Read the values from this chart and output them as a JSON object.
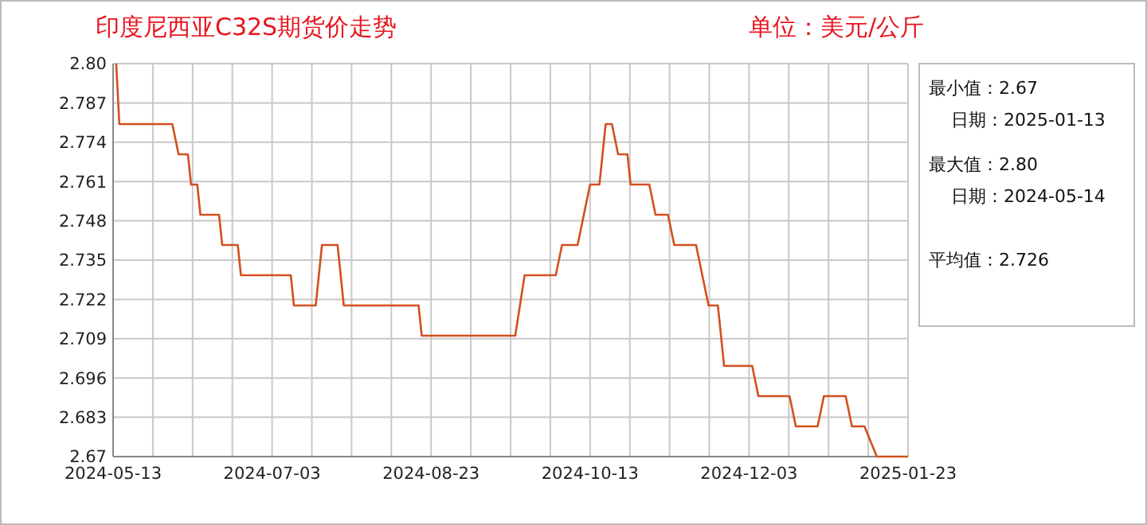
{
  "chart_data": {
    "type": "line",
    "title": "印度尼西亚C32S期货价走势",
    "subtitle": "单位：美元/公斤",
    "series": [
      {
        "color": "#d2501e",
        "x": [
          "2024-05-14",
          "2024-05-15",
          "2024-06-01",
          "2024-06-03",
          "2024-06-06",
          "2024-06-07",
          "2024-06-09",
          "2024-06-10",
          "2024-06-16",
          "2024-06-17",
          "2024-06-22",
          "2024-06-23",
          "2024-07-09",
          "2024-07-10",
          "2024-07-17",
          "2024-07-19",
          "2024-07-24",
          "2024-07-26",
          "2024-08-19",
          "2024-08-20",
          "2024-09-19",
          "2024-09-22",
          "2024-10-02",
          "2024-10-04",
          "2024-10-09",
          "2024-10-13",
          "2024-10-16",
          "2024-10-18",
          "2024-10-20",
          "2024-10-22",
          "2024-10-25",
          "2024-10-26",
          "2024-11-01",
          "2024-11-03",
          "2024-11-07",
          "2024-11-09",
          "2024-11-16",
          "2024-11-18",
          "2024-11-20",
          "2024-11-23",
          "2024-11-25",
          "2024-12-04",
          "2024-12-06",
          "2024-12-16",
          "2024-12-18",
          "2024-12-25",
          "2024-12-27",
          "2025-01-03",
          "2025-01-05",
          "2025-01-09",
          "2025-01-13",
          "2025-01-23"
        ],
        "values": [
          2.8,
          2.78,
          2.78,
          2.77,
          2.77,
          2.76,
          2.76,
          2.75,
          2.75,
          2.74,
          2.74,
          2.73,
          2.73,
          2.72,
          2.72,
          2.74,
          2.74,
          2.72,
          2.72,
          2.71,
          2.71,
          2.73,
          2.73,
          2.74,
          2.74,
          2.76,
          2.76,
          2.78,
          2.78,
          2.77,
          2.77,
          2.76,
          2.76,
          2.75,
          2.75,
          2.74,
          2.74,
          2.73,
          2.72,
          2.72,
          2.7,
          2.7,
          2.69,
          2.69,
          2.68,
          2.68,
          2.69,
          2.69,
          2.68,
          2.68,
          2.67,
          2.67
        ]
      }
    ],
    "xlim": [
      "2024-05-13",
      "2025-01-23"
    ],
    "xticks": [
      "2024-05-13",
      {
        "value": "2024-05-25T18:00",
        "label": null
      },
      {
        "value": "2024-06-07T12:00",
        "label": null
      },
      {
        "value": "2024-06-20T06:00",
        "label": null
      },
      "2024-07-03",
      {
        "value": "2024-07-15T18:00",
        "label": null
      },
      {
        "value": "2024-07-28T12:00",
        "label": null
      },
      {
        "value": "2024-08-10T06:00",
        "label": null
      },
      "2024-08-23",
      {
        "value": "2024-09-04T18:00",
        "label": null
      },
      {
        "value": "2024-09-17T12:00",
        "label": null
      },
      {
        "value": "2024-09-30T06:00",
        "label": null
      },
      "2024-10-13",
      {
        "value": "2024-10-25T18:00",
        "label": null
      },
      {
        "value": "2024-11-07T12:00",
        "label": null
      },
      {
        "value": "2024-11-20T06:00",
        "label": null
      },
      "2024-12-03",
      {
        "value": "2024-12-15T18:00",
        "label": null
      },
      {
        "value": "2024-12-28T12:00",
        "label": null
      },
      {
        "value": "2025-01-10T06:00",
        "label": null
      },
      "2025-01-23"
    ],
    "ylim": [
      2.67,
      2.8
    ],
    "yticks": [
      2.67,
      2.683,
      2.696,
      2.709,
      2.722,
      2.735,
      2.748,
      2.761,
      2.774,
      2.787,
      {
        "value": 2.8,
        "label": "2.80"
      }
    ],
    "grid": true,
    "marker": "none",
    "line_style": "solid",
    "annotations": [
      "最小值：2.67",
      "日期：2025-01-13",
      "最大值：2.80",
      "日期：2024-05-14",
      "平均值：2.726"
    ]
  }
}
